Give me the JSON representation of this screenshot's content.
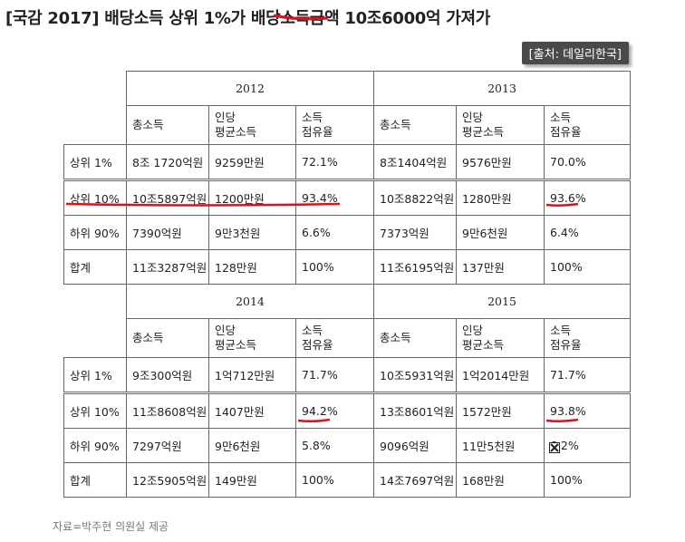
{
  "headline": "[국감 2017] 배당소득 상위 1%가 배당소득금액 10조6000억 가져가",
  "source_label": "[출처: 데일리한국]",
  "columns": {
    "total_income": "총소득",
    "per_person_line1": "인당",
    "per_person_line2": "평균소득",
    "share_line1": "소득",
    "share_line2": "점유율"
  },
  "blocks": [
    {
      "years": [
        "2012",
        "2013"
      ],
      "rows": [
        {
          "label": "상위 1%",
          "cells": [
            "8조 1720억원",
            "9259만원",
            "72.1%",
            "8조1404억원",
            "9576만원",
            "70.0%"
          ]
        },
        {
          "label": "상위 10%",
          "cells": [
            "10조5897억원",
            "1200만원",
            "93.4%",
            "10조8822억원",
            "1280만원",
            "93.6%"
          ]
        },
        {
          "label": "하위 90%",
          "cells": [
            "7390억원",
            "9만3천원",
            "6.6%",
            "7373억원",
            "9만6천원",
            "6.4%"
          ]
        },
        {
          "label": "합계",
          "cells": [
            "11조3287억원",
            "128만원",
            "100%",
            "11조6195억원",
            "137만원",
            "100%"
          ]
        }
      ]
    },
    {
      "years": [
        "2014",
        "2015"
      ],
      "rows": [
        {
          "label": "상위 1%",
          "cells": [
            "9조300억원",
            "1억712만원",
            "71.7%",
            "10조5931억원",
            "1억2014만원",
            "71.7%"
          ]
        },
        {
          "label": "상위 10%",
          "cells": [
            "11조8608억원",
            "1407만원",
            "94.2%",
            "13조8601억원",
            "1572만원",
            "93.8%"
          ]
        },
        {
          "label": "하위 90%",
          "cells": [
            "7297억원",
            "9만6천원",
            "5.8%",
            "9096억원",
            "11만5천원",
            "6.2%"
          ]
        },
        {
          "label": "합계",
          "cells": [
            "12조5905억원",
            "149만원",
            "100%",
            "14조7697억원",
            "168만원",
            "100%"
          ]
        }
      ]
    }
  ],
  "footnote": "자료=박주현 의원실 제공",
  "colors": {
    "highlight": "#e0101a",
    "source_bg": "#4a4a4a"
  },
  "icons": [
    "broken-image-icon"
  ]
}
